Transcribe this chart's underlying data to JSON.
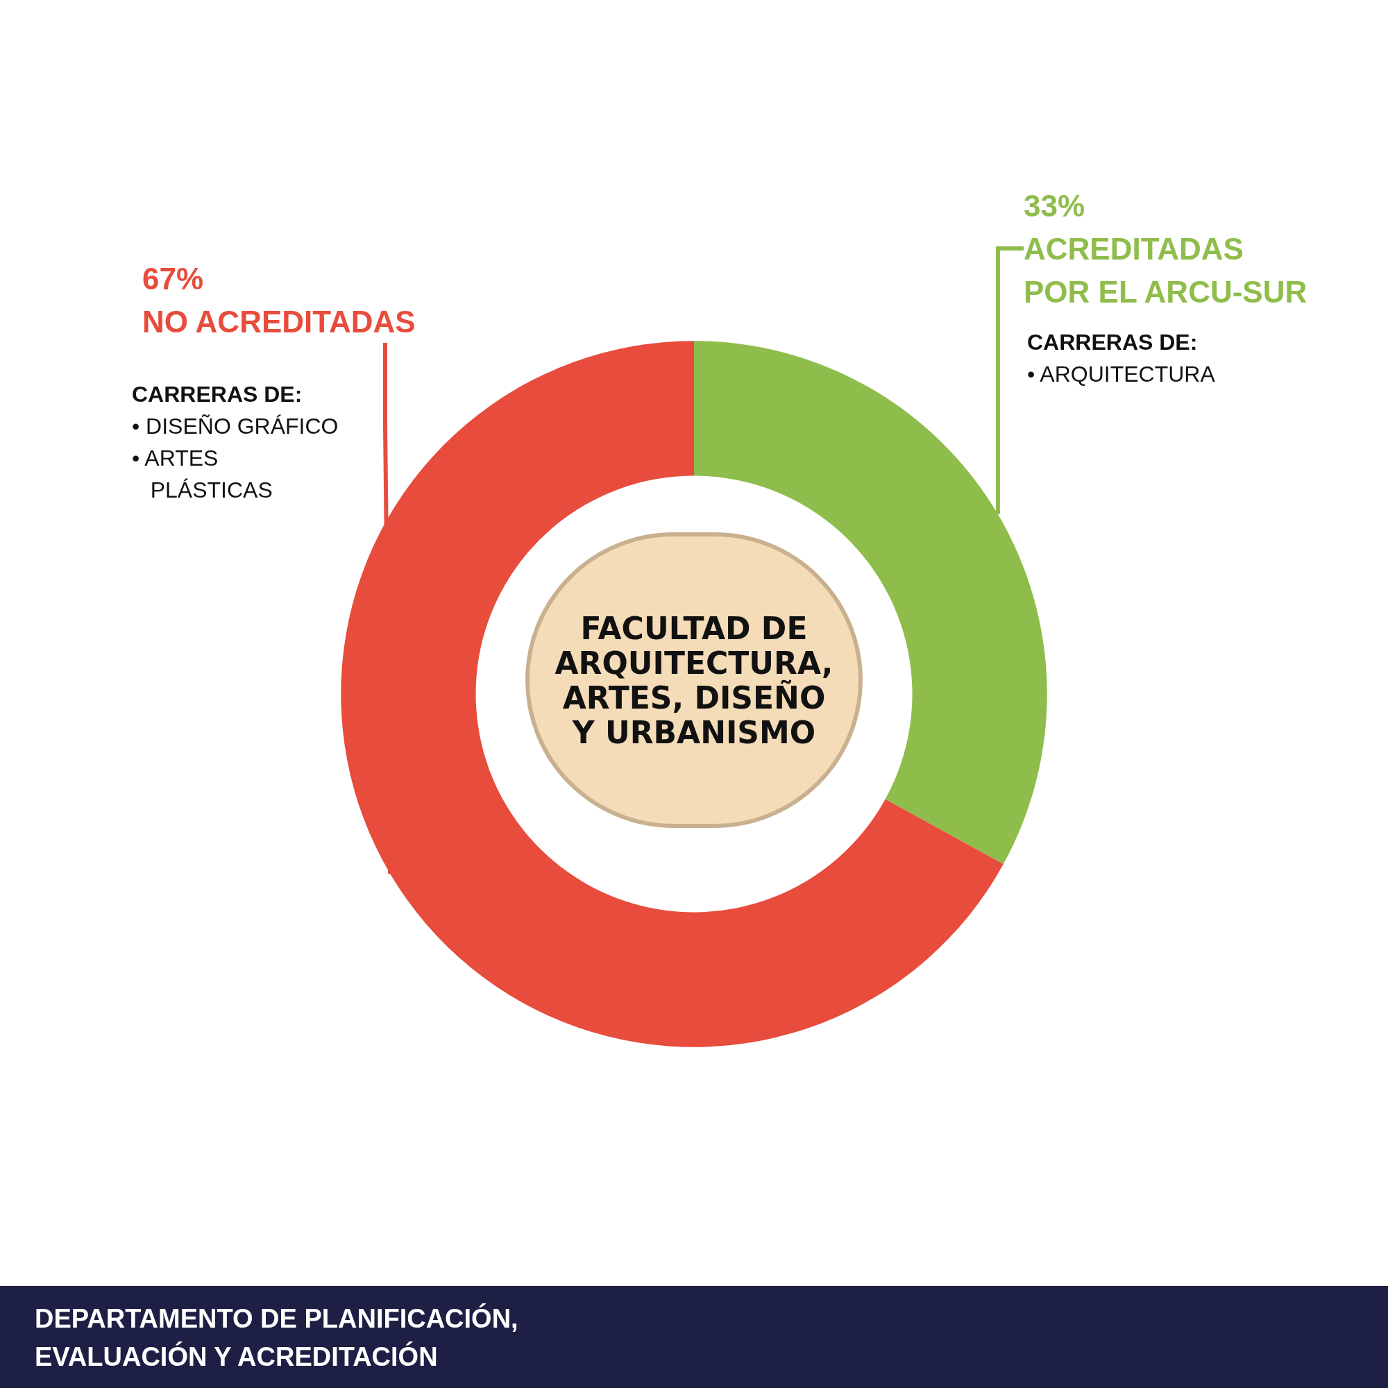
{
  "chart_data": {
    "type": "donut",
    "title": "FACULTAD DE\nARQUITECTURA,\nARTES, DISEÑO\nY URBANISMO",
    "categories": [
      "ACREDITADAS\nPOR EL ARCU-SUR",
      "NO ACREDITADAS"
    ],
    "values": [
      33,
      67
    ],
    "colors": [
      "#8fbd4b",
      "#e74c3c"
    ],
    "value_labels": [
      "33%",
      "67%"
    ],
    "legend": false,
    "annotations": [
      "CARRERAS DE:\n• ARQUITECTURA",
      "CARRERAS DE:\n• DISEÑO GRÁFICO\n• ARTES\n   PLÁSTICAS",
      "DEPARTAMENTO DE PLANIFICACIÓN,\nEVALUACIÓN Y ACREDITACIÓN"
    ]
  }
}
